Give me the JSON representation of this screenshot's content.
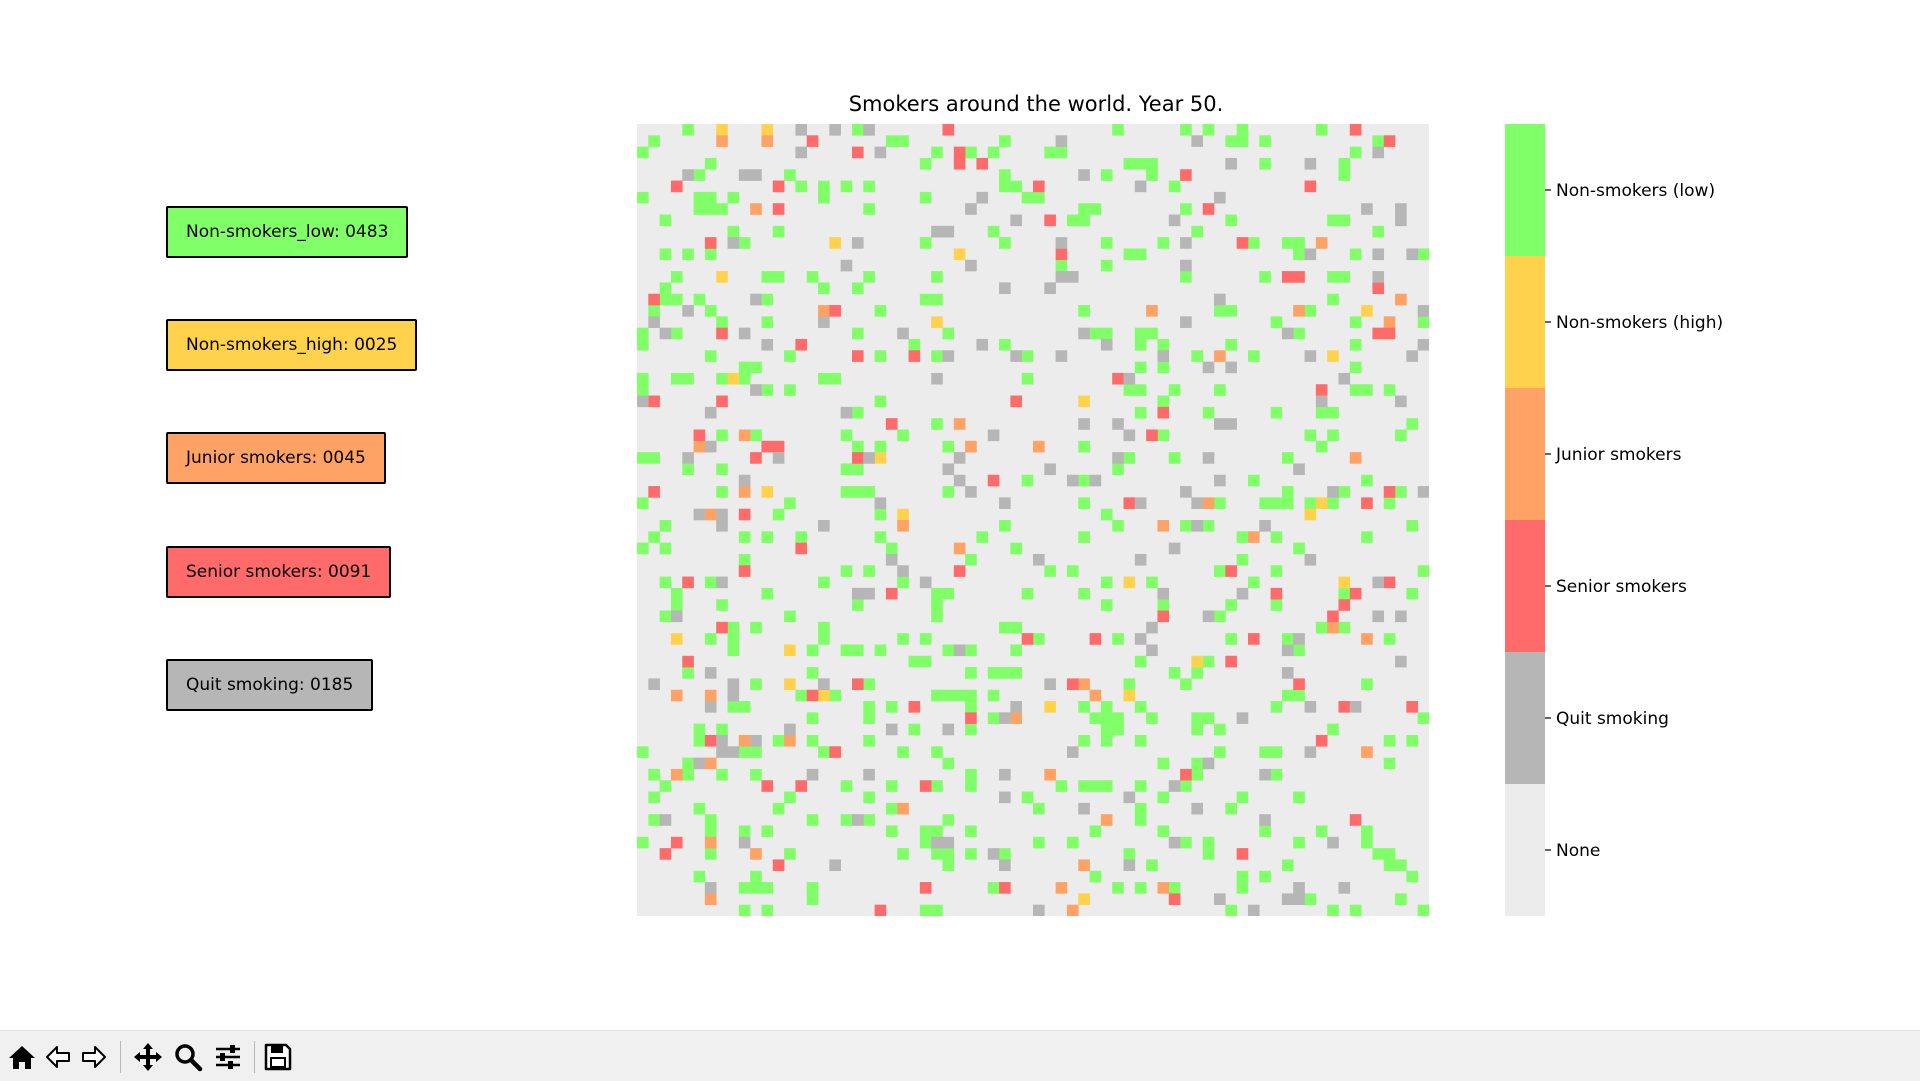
{
  "chart_data": {
    "type": "heatmap",
    "title": "Smokers around the world. Year 50.",
    "grid_size": [
      70,
      70
    ],
    "categories": [
      "Non-smokers (low)",
      "Non-smokers (high)",
      "Junior smokers",
      "Senior smokers",
      "Quit smoking",
      "None"
    ],
    "colors": {
      "Non-smokers (low)": "#80ff68",
      "Non-smokers (high)": "#ffd24e",
      "Junior smokers": "#ffa266",
      "Senior smokers": "#ff6a6a",
      "Quit smoking": "#b6b6b6",
      "None": "#ececec"
    },
    "counts": {
      "Non-smokers (low)": 483,
      "Non-smokers (high)": 25,
      "Junior smokers": 45,
      "Senior smokers": 91,
      "Quit smoking": 185,
      "None": 4071
    },
    "legend": [
      {
        "label": "Non-smokers_low: 0483",
        "color": "#80ff68"
      },
      {
        "label": "Non-smokers_high: 0025",
        "color": "#ffd24e"
      },
      {
        "label": "Junior smokers: 0045",
        "color": "#ffa266"
      },
      {
        "label": "Senior smokers: 0091",
        "color": "#ff6a6a"
      },
      {
        "label": "Quit smoking: 0185",
        "color": "#b6b6b6"
      }
    ],
    "colorbar": {
      "ticks": [
        "Non-smokers (low)",
        "Non-smokers (high)",
        "Junior smokers",
        "Senior smokers",
        "Quit smoking",
        "None"
      ]
    }
  },
  "toolbar": {
    "tools": [
      "home",
      "back",
      "forward",
      "pan",
      "zoom",
      "configure-subplots",
      "save"
    ]
  }
}
